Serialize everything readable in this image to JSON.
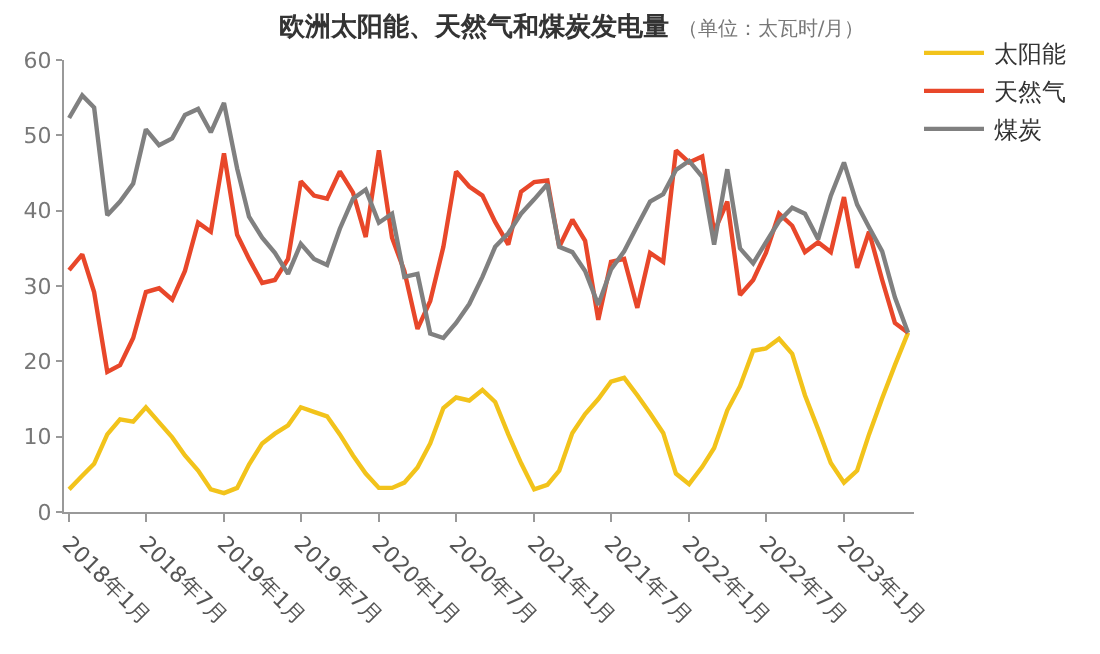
{
  "chart_data": {
    "type": "line",
    "title": "欧洲太阳能、天然气和煤炭发电量",
    "subtitle": "（单位：太瓦时/月）",
    "x": [
      "2018-01",
      "2018-02",
      "2018-03",
      "2018-04",
      "2018-05",
      "2018-06",
      "2018-07",
      "2018-08",
      "2018-09",
      "2018-10",
      "2018-11",
      "2018-12",
      "2019-01",
      "2019-02",
      "2019-03",
      "2019-04",
      "2019-05",
      "2019-06",
      "2019-07",
      "2019-08",
      "2019-09",
      "2019-10",
      "2019-11",
      "2019-12",
      "2020-01",
      "2020-02",
      "2020-03",
      "2020-04",
      "2020-05",
      "2020-06",
      "2020-07",
      "2020-08",
      "2020-09",
      "2020-10",
      "2020-11",
      "2020-12",
      "2021-01",
      "2021-02",
      "2021-03",
      "2021-04",
      "2021-05",
      "2021-06",
      "2021-07",
      "2021-08",
      "2021-09",
      "2021-10",
      "2021-11",
      "2021-12",
      "2022-01",
      "2022-02",
      "2022-03",
      "2022-04",
      "2022-05",
      "2022-06",
      "2022-07",
      "2022-08",
      "2022-09",
      "2022-10",
      "2022-11",
      "2022-12",
      "2023-01",
      "2023-02",
      "2023-03",
      "2023-04",
      "2023-05",
      "2023-06"
    ],
    "series": [
      {
        "name": "太阳能",
        "color": "#f2c31b",
        "values": [
          3.0,
          4.8,
          6.4,
          10.3,
          12.3,
          12.0,
          13.9,
          11.9,
          9.9,
          7.5,
          5.5,
          3.0,
          2.5,
          3.2,
          6.3,
          9.1,
          10.4,
          11.5,
          13.9,
          13.3,
          12.7,
          10.3,
          7.5,
          5.1,
          3.2,
          3.2,
          3.9,
          5.9,
          9.1,
          13.8,
          15.2,
          14.8,
          16.2,
          14.6,
          10.3,
          6.5,
          3.0,
          3.6,
          5.5,
          10.5,
          13.0,
          15.0,
          17.3,
          17.8,
          15.5,
          13.1,
          10.5,
          5.1,
          3.7,
          6.0,
          8.5,
          13.5,
          16.7,
          21.4,
          21.7,
          23.0,
          21.0,
          15.5,
          11.0,
          6.5,
          3.9,
          5.5,
          10.3,
          15.1,
          19.5,
          23.8
        ]
      },
      {
        "name": "天然气",
        "color": "#e8472a",
        "values": [
          32.1,
          34.2,
          29.2,
          18.6,
          19.5,
          23.1,
          29.2,
          29.7,
          28.2,
          32.0,
          38.4,
          37.2,
          47.6,
          36.8,
          33.6,
          30.4,
          30.8,
          33.6,
          43.9,
          42.0,
          41.6,
          45.2,
          42.4,
          36.5,
          48.0,
          36.4,
          32.0,
          24.3,
          28.0,
          35.2,
          45.2,
          43.2,
          42.0,
          38.5,
          35.5,
          42.5,
          43.8,
          44.0,
          35.2,
          38.8,
          36.0,
          25.5,
          33.2,
          33.6,
          27.1,
          34.4,
          33.2,
          48.0,
          46.4,
          47.2,
          37.2,
          41.2,
          28.8,
          30.8,
          34.4,
          39.6,
          38.0,
          34.5,
          35.8,
          34.5,
          41.8,
          32.4,
          37.2,
          30.8,
          25.1,
          23.8
        ]
      },
      {
        "name": "煤炭",
        "color": "#808080",
        "values": [
          52.3,
          55.3,
          53.7,
          39.4,
          41.2,
          43.6,
          50.8,
          48.7,
          49.6,
          52.7,
          53.5,
          50.4,
          54.3,
          45.6,
          39.2,
          36.4,
          34.4,
          31.6,
          35.6,
          33.6,
          32.8,
          37.6,
          41.6,
          42.8,
          38.4,
          39.6,
          31.2,
          31.6,
          23.7,
          23.1,
          25.1,
          27.6,
          31.2,
          35.2,
          37.0,
          39.6,
          41.5,
          43.5,
          35.2,
          34.5,
          32.0,
          27.5,
          32.2,
          34.6,
          38.0,
          41.2,
          42.2,
          45.4,
          46.6,
          44.5,
          35.5,
          45.5,
          35.0,
          33.0,
          35.8,
          38.6,
          40.4,
          39.6,
          36.2,
          42.0,
          46.4,
          40.8,
          37.8,
          34.6,
          28.5,
          23.8
        ]
      }
    ],
    "xlim": [
      "2017-12-20",
      "2023-06-15"
    ],
    "xticks": [
      {
        "value": "2018-01",
        "label": "2018年1月"
      },
      {
        "value": "2018-07",
        "label": "2018年7月"
      },
      {
        "value": "2019-01",
        "label": "2019年1月"
      },
      {
        "value": "2019-07",
        "label": "2019年7月"
      },
      {
        "value": "2020-01",
        "label": "2020年1月"
      },
      {
        "value": "2020-07",
        "label": "2020年7月"
      },
      {
        "value": "2021-01",
        "label": "2021年1月"
      },
      {
        "value": "2021-07",
        "label": "2021年7月"
      },
      {
        "value": "2022-01",
        "label": "2022年1月"
      },
      {
        "value": "2022-07",
        "label": "2022年7月"
      },
      {
        "value": "2023-01",
        "label": "2023年1月"
      }
    ],
    "ylim": [
      0,
      60
    ],
    "yticks": [
      0,
      10,
      20,
      30,
      40,
      50,
      60
    ],
    "legend": "top right",
    "marker": "none",
    "line_style": "solid"
  }
}
